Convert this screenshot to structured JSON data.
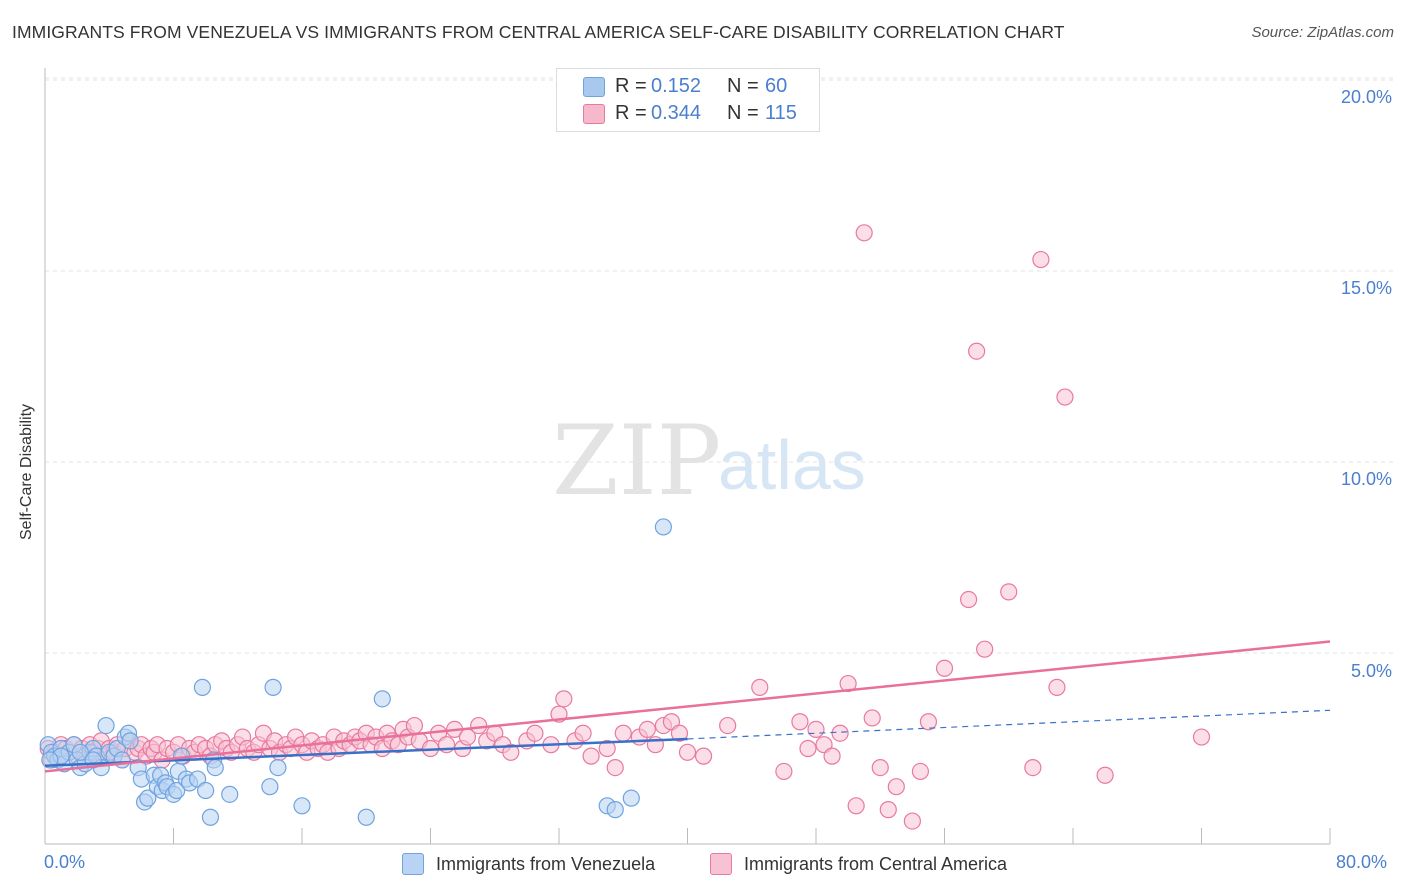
{
  "title": "IMMIGRANTS FROM VENEZUELA VS IMMIGRANTS FROM CENTRAL AMERICA SELF-CARE DISABILITY CORRELATION CHART",
  "source": "Source: ZipAtlas.com",
  "watermark": {
    "zip": "ZIP",
    "atlas": "atlas"
  },
  "legend_top": {
    "rows": [
      {
        "r_label": "R =",
        "r_value": "0.152",
        "n_label": "N =",
        "n_value": "60",
        "color": "#a9c8ee"
      },
      {
        "r_label": "R =",
        "r_value": "0.344",
        "n_label": "N =",
        "n_value": "115",
        "color": "#f6b8cb"
      }
    ]
  },
  "colors": {
    "blue": "#6fa3e0",
    "blue_fill": "#b8d3f3",
    "pink": "#e87aa0",
    "pink_fill": "#f7c3d3",
    "blue_line": "#3a70c8",
    "pink_line": "#e8709a",
    "tick_text": "#4a7fd0"
  },
  "chart_data": {
    "type": "scatter",
    "title": "IMMIGRANTS FROM VENEZUELA VS IMMIGRANTS FROM CENTRAL AMERICA SELF-CARE DISABILITY CORRELATION CHART",
    "xlabel": "",
    "ylabel": "Self-Care Disability",
    "xlim": [
      0,
      80
    ],
    "ylim": [
      0,
      20
    ],
    "x_tick_labels": [
      "0.0%",
      "80.0%"
    ],
    "y_ticks": [
      5,
      10,
      15,
      20
    ],
    "y_tick_labels": [
      "5.0%",
      "10.0%",
      "15.0%",
      "20.0%"
    ],
    "grid": true,
    "legend_position": "bottom",
    "series": [
      {
        "name": "Immigrants from Venezuela",
        "color": "#6fa3e0",
        "points": [
          [
            0.2,
            2.6
          ],
          [
            0.4,
            2.4
          ],
          [
            0.6,
            2.3
          ],
          [
            0.8,
            2.2
          ],
          [
            1.0,
            2.5
          ],
          [
            1.2,
            2.1
          ],
          [
            1.5,
            2.4
          ],
          [
            1.8,
            2.6
          ],
          [
            2.0,
            2.2
          ],
          [
            2.2,
            2.0
          ],
          [
            2.5,
            2.1
          ],
          [
            2.8,
            2.4
          ],
          [
            3.0,
            2.5
          ],
          [
            3.2,
            2.3
          ],
          [
            3.5,
            2.0
          ],
          [
            3.8,
            3.1
          ],
          [
            4.0,
            2.4
          ],
          [
            4.3,
            2.3
          ],
          [
            4.5,
            2.5
          ],
          [
            4.8,
            2.2
          ],
          [
            5.0,
            2.8
          ],
          [
            5.2,
            2.9
          ],
          [
            5.3,
            2.7
          ],
          [
            5.8,
            2.0
          ],
          [
            6.0,
            1.7
          ],
          [
            6.2,
            1.1
          ],
          [
            6.4,
            1.2
          ],
          [
            6.8,
            1.8
          ],
          [
            7.0,
            1.5
          ],
          [
            7.2,
            1.8
          ],
          [
            7.3,
            1.4
          ],
          [
            7.5,
            1.6
          ],
          [
            7.6,
            1.5
          ],
          [
            8.0,
            1.3
          ],
          [
            8.2,
            1.4
          ],
          [
            8.3,
            1.9
          ],
          [
            8.5,
            2.3
          ],
          [
            8.8,
            1.7
          ],
          [
            9.0,
            1.6
          ],
          [
            9.5,
            1.7
          ],
          [
            9.8,
            4.1
          ],
          [
            10.0,
            1.4
          ],
          [
            10.3,
            0.7
          ],
          [
            10.5,
            2.2
          ],
          [
            10.6,
            2.0
          ],
          [
            11.5,
            1.3
          ],
          [
            14.0,
            1.5
          ],
          [
            14.2,
            4.1
          ],
          [
            14.5,
            2.0
          ],
          [
            16.0,
            1.0
          ],
          [
            20.0,
            0.7
          ],
          [
            21.0,
            3.8
          ],
          [
            35.0,
            1.0
          ],
          [
            35.5,
            0.9
          ],
          [
            36.5,
            1.2
          ],
          [
            38.5,
            8.3
          ],
          [
            1.0,
            2.3
          ],
          [
            2.2,
            2.4
          ],
          [
            3.0,
            2.2
          ],
          [
            0.3,
            2.2
          ]
        ]
      },
      {
        "name": "Immigrants from Central America",
        "color": "#e87aa0",
        "points": [
          [
            0.2,
            2.5
          ],
          [
            0.4,
            2.2
          ],
          [
            0.6,
            2.4
          ],
          [
            0.8,
            2.3
          ],
          [
            1.0,
            2.6
          ],
          [
            1.3,
            2.5
          ],
          [
            1.5,
            2.4
          ],
          [
            1.8,
            2.6
          ],
          [
            2.0,
            2.3
          ],
          [
            2.3,
            2.5
          ],
          [
            2.5,
            2.2
          ],
          [
            2.8,
            2.6
          ],
          [
            3.0,
            2.4
          ],
          [
            3.3,
            2.5
          ],
          [
            3.5,
            2.7
          ],
          [
            3.8,
            2.3
          ],
          [
            4.0,
            2.5
          ],
          [
            4.3,
            2.4
          ],
          [
            4.5,
            2.6
          ],
          [
            4.8,
            2.2
          ],
          [
            5.0,
            2.5
          ],
          [
            5.3,
            2.7
          ],
          [
            5.6,
            2.4
          ],
          [
            5.8,
            2.5
          ],
          [
            6.0,
            2.6
          ],
          [
            6.3,
            2.3
          ],
          [
            6.6,
            2.5
          ],
          [
            6.8,
            2.4
          ],
          [
            7.0,
            2.6
          ],
          [
            7.3,
            2.2
          ],
          [
            7.6,
            2.5
          ],
          [
            8.0,
            2.4
          ],
          [
            8.3,
            2.6
          ],
          [
            8.6,
            2.3
          ],
          [
            9.0,
            2.5
          ],
          [
            9.3,
            2.4
          ],
          [
            9.6,
            2.6
          ],
          [
            10.0,
            2.5
          ],
          [
            10.3,
            2.3
          ],
          [
            10.6,
            2.6
          ],
          [
            11.0,
            2.7
          ],
          [
            11.3,
            2.5
          ],
          [
            11.6,
            2.4
          ],
          [
            12.0,
            2.6
          ],
          [
            12.3,
            2.8
          ],
          [
            12.6,
            2.5
          ],
          [
            13.0,
            2.4
          ],
          [
            13.3,
            2.6
          ],
          [
            13.6,
            2.9
          ],
          [
            14.0,
            2.5
          ],
          [
            14.3,
            2.7
          ],
          [
            14.6,
            2.4
          ],
          [
            15.0,
            2.6
          ],
          [
            15.3,
            2.5
          ],
          [
            15.6,
            2.8
          ],
          [
            16.0,
            2.6
          ],
          [
            16.3,
            2.4
          ],
          [
            16.6,
            2.7
          ],
          [
            17.0,
            2.5
          ],
          [
            17.3,
            2.6
          ],
          [
            17.6,
            2.4
          ],
          [
            18.0,
            2.8
          ],
          [
            18.3,
            2.5
          ],
          [
            18.6,
            2.7
          ],
          [
            19.0,
            2.6
          ],
          [
            19.3,
            2.8
          ],
          [
            19.6,
            2.7
          ],
          [
            20.0,
            2.9
          ],
          [
            20.3,
            2.6
          ],
          [
            20.6,
            2.8
          ],
          [
            21.0,
            2.5
          ],
          [
            21.3,
            2.9
          ],
          [
            21.6,
            2.7
          ],
          [
            22.0,
            2.6
          ],
          [
            22.3,
            3.0
          ],
          [
            22.6,
            2.8
          ],
          [
            23.0,
            3.1
          ],
          [
            23.3,
            2.7
          ],
          [
            24.0,
            2.5
          ],
          [
            24.5,
            2.9
          ],
          [
            25.0,
            2.6
          ],
          [
            25.5,
            3.0
          ],
          [
            26.0,
            2.5
          ],
          [
            26.3,
            2.8
          ],
          [
            27.0,
            3.1
          ],
          [
            27.5,
            2.7
          ],
          [
            28.0,
            2.9
          ],
          [
            28.5,
            2.6
          ],
          [
            29.0,
            2.4
          ],
          [
            30.0,
            2.7
          ],
          [
            30.5,
            2.9
          ],
          [
            31.5,
            2.6
          ],
          [
            32.0,
            3.4
          ],
          [
            32.3,
            3.8
          ],
          [
            33.0,
            2.7
          ],
          [
            33.5,
            2.9
          ],
          [
            34.0,
            2.3
          ],
          [
            35.0,
            2.5
          ],
          [
            35.5,
            2.0
          ],
          [
            36.0,
            2.9
          ],
          [
            37.0,
            2.8
          ],
          [
            37.5,
            3.0
          ],
          [
            38.0,
            2.6
          ],
          [
            38.5,
            3.1
          ],
          [
            39.0,
            3.2
          ],
          [
            39.5,
            2.9
          ],
          [
            40.0,
            2.4
          ],
          [
            41.0,
            2.3
          ],
          [
            42.5,
            3.1
          ],
          [
            44.5,
            4.1
          ],
          [
            47.0,
            3.2
          ],
          [
            51.0,
            16.0
          ],
          [
            52.5,
            0.9
          ],
          [
            58.0,
            12.9
          ],
          [
            62.0,
            15.3
          ]
        ]
      }
    ],
    "trend_lines": [
      {
        "series": "Immigrants from Venezuela",
        "x": [
          0,
          40
        ],
        "y": [
          2.05,
          2.75
        ],
        "dashed_extension": {
          "x": [
            40,
            80
          ],
          "y": [
            2.75,
            3.5
          ]
        }
      },
      {
        "series": "Immigrants from Central America",
        "x": [
          0,
          80
        ],
        "y": [
          1.9,
          5.3
        ]
      }
    ]
  },
  "extra_points": {
    "Immigrants from Central America": [
      [
        46.0,
        1.9
      ],
      [
        47.5,
        2.5
      ],
      [
        48.0,
        3.0
      ],
      [
        48.5,
        2.6
      ],
      [
        49.0,
        2.3
      ],
      [
        49.5,
        2.9
      ],
      [
        50.0,
        4.2
      ],
      [
        50.5,
        1.0
      ],
      [
        51.5,
        3.3
      ],
      [
        52.0,
        2.0
      ],
      [
        53.0,
        1.5
      ],
      [
        54.0,
        0.6
      ],
      [
        54.5,
        1.9
      ],
      [
        55.0,
        3.2
      ],
      [
        56.0,
        4.6
      ],
      [
        57.5,
        6.4
      ],
      [
        58.5,
        5.1
      ],
      [
        60.0,
        6.6
      ],
      [
        61.5,
        2.0
      ],
      [
        63.0,
        4.1
      ],
      [
        63.5,
        11.7
      ],
      [
        66.0,
        1.8
      ],
      [
        72.0,
        2.8
      ]
    ]
  },
  "bottom_legend": [
    {
      "label": "Immigrants from Venezuela",
      "color": "#b8d3f3",
      "border": "#6fa3e0"
    },
    {
      "label": "Immigrants from Central America",
      "color": "#f7c3d3",
      "border": "#e87aa0"
    }
  ]
}
